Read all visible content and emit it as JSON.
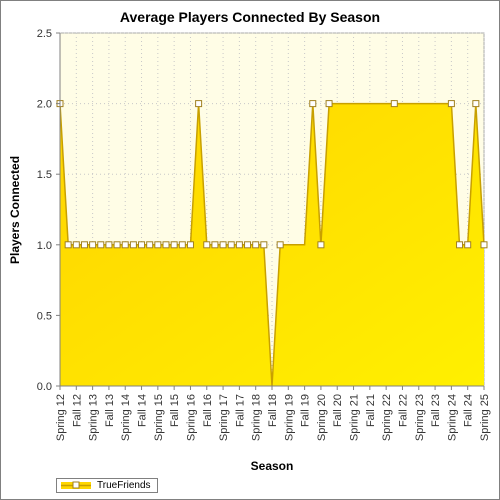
{
  "chart_data": {
    "type": "area",
    "title": "Average Players Connected By Season",
    "xlabel": "Season",
    "ylabel": "Players Connected",
    "ylim": [
      0,
      2.5
    ],
    "yticks": [
      "0.0",
      "0.5",
      "1.0",
      "1.5",
      "2.0",
      "2.5"
    ],
    "grid": true,
    "legend_position": "bottom-left",
    "categories": [
      "Spring 12",
      "Fall 12",
      "Spring 13",
      "Fall 13",
      "Spring 14",
      "Fall 14",
      "Spring 15",
      "Fall 15",
      "Spring 16",
      "Fall 16",
      "Spring 17",
      "Fall 17",
      "Spring 18",
      "Fall 18",
      "Spring 19",
      "Fall 19",
      "Spring 20",
      "Fall 20",
      "Spring 21",
      "Fall 21",
      "Spring 22",
      "Fall 22",
      "Spring 23",
      "Fall 23",
      "Spring 24",
      "Fall 24",
      "Spring 25"
    ],
    "x": [
      0,
      2,
      4,
      6,
      8,
      10,
      12,
      14,
      16,
      18,
      20,
      22,
      24,
      26,
      28,
      30,
      32,
      34,
      36,
      38,
      40,
      42,
      44,
      46,
      48,
      50,
      52,
      54,
      56,
      58,
      60,
      62,
      64,
      66,
      68,
      70,
      72,
      74,
      76,
      78,
      80,
      82,
      84,
      86,
      88,
      90,
      92,
      94,
      96,
      98,
      100,
      102,
      104
    ],
    "series": [
      {
        "name": "TrueFriends",
        "values": [
          2,
          1,
          1,
          1,
          1,
          1,
          1,
          1,
          1,
          1,
          1,
          1,
          1,
          1,
          1,
          1,
          1,
          2,
          1,
          1,
          1,
          1,
          1,
          1,
          1,
          1,
          0,
          1,
          1,
          1,
          1,
          2,
          1,
          2,
          2,
          2,
          2,
          2,
          2,
          2,
          2,
          2,
          2,
          2,
          2,
          2,
          2,
          2,
          2,
          1,
          1,
          2,
          1
        ],
        "markers": [
          0,
          1,
          2,
          3,
          4,
          5,
          6,
          7,
          8,
          9,
          10,
          11,
          12,
          13,
          14,
          15,
          16,
          17,
          18,
          19,
          20,
          21,
          22,
          23,
          24,
          25,
          27,
          31,
          32,
          33,
          41,
          48,
          49,
          50,
          51,
          52
        ]
      }
    ],
    "colors": {
      "fill": "#ffd700",
      "line": "#b8860b",
      "plot_bg": "#fffde6",
      "marker": "#ffffff"
    }
  }
}
